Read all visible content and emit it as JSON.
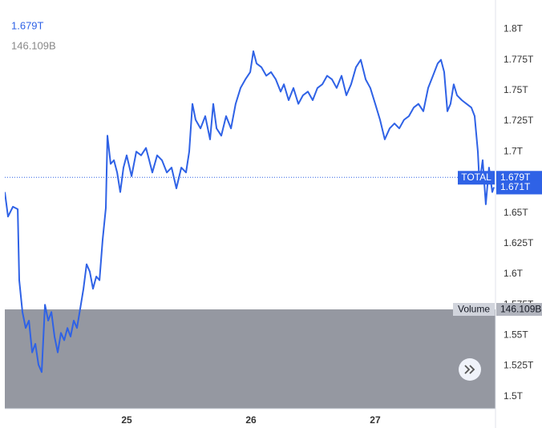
{
  "chart_data": {
    "type": "line",
    "header": {
      "price": "1.679T",
      "volume": "146.109B"
    },
    "series_label": "TOTAL",
    "volume_label": "Volume",
    "volume_value": "146.109B",
    "price_line": {
      "value": 1.679,
      "label": "1.679T"
    },
    "last_value": {
      "value": 1.671,
      "label": "1.671T"
    },
    "color": "#2f62e6",
    "grid": false,
    "xlim": [
      24.019,
      27.968
    ],
    "xticks": [
      25,
      26,
      27
    ],
    "ylim": [
      1.49,
      1.816
    ],
    "yticks": [
      {
        "value": 1.5,
        "label": "1.5T"
      },
      {
        "value": 1.525,
        "label": "1.525T"
      },
      {
        "value": 1.55,
        "label": "1.55T"
      },
      {
        "value": 1.575,
        "label": "1.575T"
      },
      {
        "value": 1.6,
        "label": "1.6T"
      },
      {
        "value": 1.625,
        "label": "1.625T"
      },
      {
        "value": 1.65,
        "label": "1.65T"
      },
      {
        "value": 1.675,
        "label": "1.675T"
      },
      {
        "value": 1.7,
        "label": "1.7T"
      },
      {
        "value": 1.725,
        "label": "1.725T"
      },
      {
        "value": 1.75,
        "label": "1.75T"
      },
      {
        "value": 1.775,
        "label": "1.775T"
      },
      {
        "value": 1.8,
        "label": "1.8T"
      }
    ],
    "x": [
      24.019,
      24.045,
      24.084,
      24.123,
      24.135,
      24.161,
      24.187,
      24.213,
      24.239,
      24.265,
      24.29,
      24.316,
      24.342,
      24.368,
      24.394,
      24.419,
      24.445,
      24.471,
      24.497,
      24.523,
      24.548,
      24.574,
      24.6,
      24.626,
      24.652,
      24.677,
      24.703,
      24.729,
      24.755,
      24.781,
      24.806,
      24.832,
      24.845,
      24.871,
      24.897,
      24.923,
      24.948,
      24.974,
      25,
      25.039,
      25.077,
      25.116,
      25.155,
      25.181,
      25.206,
      25.245,
      25.284,
      25.323,
      25.361,
      25.4,
      25.439,
      25.477,
      25.503,
      25.529,
      25.555,
      25.594,
      25.632,
      25.671,
      25.697,
      25.723,
      25.761,
      25.8,
      25.839,
      25.877,
      25.916,
      25.955,
      25.994,
      26.019,
      26.045,
      26.084,
      26.123,
      26.161,
      26.2,
      26.239,
      26.265,
      26.303,
      26.342,
      26.381,
      26.419,
      26.458,
      26.497,
      26.535,
      26.574,
      26.613,
      26.652,
      26.69,
      26.729,
      26.768,
      26.806,
      26.845,
      26.884,
      26.923,
      26.961,
      27,
      27.039,
      27.077,
      27.116,
      27.155,
      27.194,
      27.232,
      27.271,
      27.31,
      27.348,
      27.387,
      27.426,
      27.465,
      27.503,
      27.529,
      27.555,
      27.581,
      27.606,
      27.632,
      27.658,
      27.697,
      27.735,
      27.774,
      27.8,
      27.826,
      27.839,
      27.865,
      27.89,
      27.916,
      27.942,
      27.955
    ],
    "values": [
      1.667,
      1.647,
      1.655,
      1.653,
      1.595,
      1.569,
      1.556,
      1.562,
      1.536,
      1.543,
      1.526,
      1.52,
      1.575,
      1.562,
      1.569,
      1.549,
      1.536,
      1.552,
      1.546,
      1.556,
      1.549,
      1.562,
      1.556,
      1.572,
      1.588,
      1.608,
      1.602,
      1.588,
      1.598,
      1.595,
      1.628,
      1.654,
      1.713,
      1.69,
      1.693,
      1.683,
      1.667,
      1.687,
      1.697,
      1.68,
      1.7,
      1.697,
      1.703,
      1.693,
      1.683,
      1.697,
      1.693,
      1.683,
      1.687,
      1.67,
      1.687,
      1.683,
      1.7,
      1.739,
      1.726,
      1.719,
      1.729,
      1.71,
      1.739,
      1.719,
      1.713,
      1.729,
      1.719,
      1.739,
      1.752,
      1.759,
      1.765,
      1.782,
      1.772,
      1.769,
      1.762,
      1.765,
      1.759,
      1.749,
      1.755,
      1.742,
      1.752,
      1.739,
      1.746,
      1.749,
      1.742,
      1.752,
      1.755,
      1.762,
      1.759,
      1.752,
      1.762,
      1.746,
      1.755,
      1.769,
      1.775,
      1.759,
      1.752,
      1.739,
      1.726,
      1.71,
      1.719,
      1.723,
      1.719,
      1.726,
      1.729,
      1.736,
      1.739,
      1.733,
      1.752,
      1.762,
      1.772,
      1.775,
      1.765,
      1.733,
      1.739,
      1.755,
      1.746,
      1.742,
      1.739,
      1.736,
      1.729,
      1.7,
      1.674,
      1.693,
      1.657,
      1.687,
      1.667,
      1.671
    ]
  }
}
